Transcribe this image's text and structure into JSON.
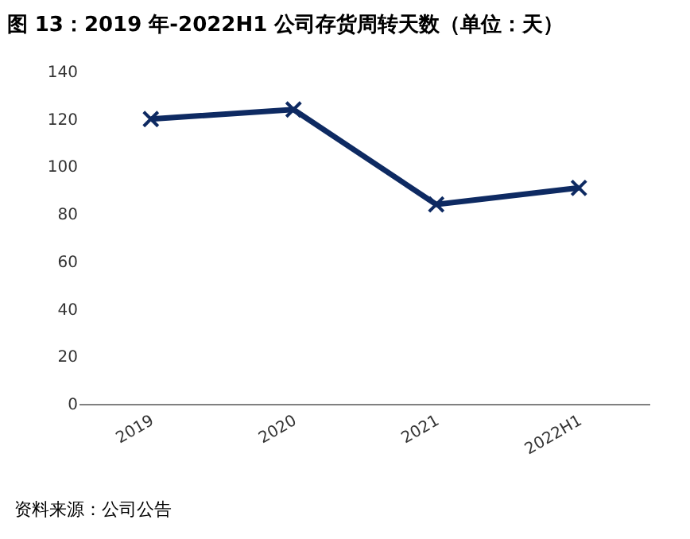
{
  "chart_data": {
    "type": "line",
    "title": "图 13：2019 年-2022H1 公司存货周转天数（单位：天）",
    "categories": [
      "2019",
      "2020",
      "2021",
      "2022H1"
    ],
    "series": [
      {
        "color": "#0e2a62",
        "values": [
          120,
          124,
          84,
          91
        ]
      }
    ],
    "ylim": [
      0,
      140
    ],
    "yticks": [
      0,
      20,
      40,
      60,
      80,
      100,
      120,
      140
    ],
    "marker": "cross",
    "line_style": "solid",
    "annotations": [
      "资料来源：公司公告"
    ]
  }
}
